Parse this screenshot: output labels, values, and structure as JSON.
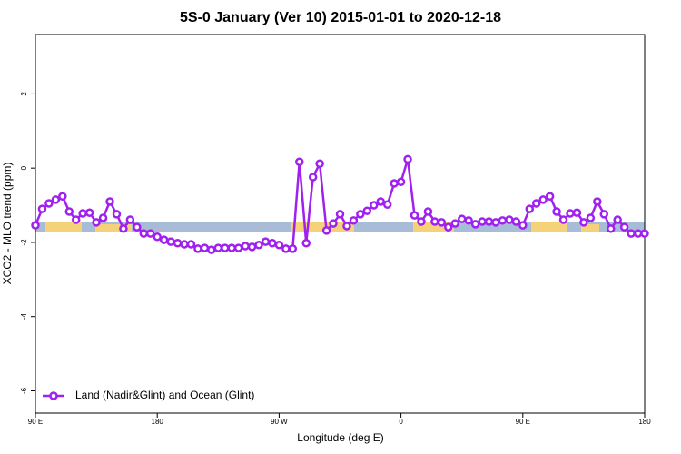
{
  "chart_data": {
    "type": "line",
    "title": "5S-0 January (Ver 10)   2015-01-01 to 2020-12-18",
    "x_label": "Longitude (deg E)",
    "y_label": "XCO2 - MLO trend (ppm)",
    "x": [
      90,
      95,
      100,
      105,
      110,
      115,
      120,
      125,
      130,
      135,
      140,
      145,
      150,
      155,
      160,
      165,
      170,
      175,
      180,
      185,
      190,
      195,
      200,
      205,
      210,
      215,
      220,
      225,
      230,
      235,
      240,
      245,
      250,
      255,
      260,
      265,
      270,
      275,
      280,
      285,
      290,
      295,
      300,
      305,
      310,
      315,
      320,
      325,
      330,
      335,
      340,
      345,
      350,
      355,
      360,
      365,
      370,
      375,
      380,
      385,
      390,
      395,
      400,
      405,
      410,
      415,
      420,
      425,
      430,
      435,
      440,
      445,
      450,
      455,
      460,
      465,
      470,
      475,
      480,
      485,
      490,
      495,
      500,
      505,
      510,
      515,
      520,
      525,
      530,
      535,
      540
    ],
    "series": [
      {
        "name": "Land (Nadir&Glint) and Ocean (Glint)",
        "color": "#a020f0",
        "values": [
          -1.54,
          -1.1,
          -0.95,
          -0.85,
          -0.76,
          -1.17,
          -1.39,
          -1.22,
          -1.2,
          -1.46,
          -1.34,
          -0.9,
          -1.24,
          -1.63,
          -1.39,
          -1.59,
          -1.76,
          -1.76,
          -1.85,
          -1.93,
          -1.98,
          -2.02,
          -2.05,
          -2.05,
          -2.17,
          -2.15,
          -2.2,
          -2.15,
          -2.15,
          -2.15,
          -2.15,
          -2.1,
          -2.12,
          -2.07,
          -1.98,
          -2.02,
          -2.07,
          -2.17,
          -2.17,
          0.17,
          -2.02,
          -0.24,
          0.12,
          -1.68,
          -1.49,
          -1.24,
          -1.56,
          -1.41,
          -1.24,
          -1.15,
          -1.0,
          -0.9,
          -0.98,
          -0.41,
          -0.37,
          0.24,
          -1.27,
          -1.44,
          -1.17,
          -1.44,
          -1.46,
          -1.59,
          -1.49,
          -1.37,
          -1.41,
          -1.51,
          -1.44,
          -1.44,
          -1.46,
          -1.41,
          -1.39,
          -1.44,
          -1.54,
          -1.1,
          -0.95,
          -0.85,
          -0.76,
          -1.17,
          -1.39,
          -1.22,
          -1.2,
          -1.46,
          -1.34,
          -0.9,
          -1.24,
          -1.63,
          -1.39,
          -1.59,
          -1.76,
          -1.76,
          -1.76
        ]
      }
    ],
    "xlim": [
      90,
      540
    ],
    "ylim": [
      -6.6,
      3.6
    ],
    "xticks": [
      {
        "value": 90,
        "label": "90 E"
      },
      {
        "value": 180,
        "label": "180"
      },
      {
        "value": 270,
        "label": "90 W"
      },
      {
        "value": 360,
        "label": "0"
      },
      {
        "value": 450,
        "label": "90 E"
      },
      {
        "value": 540,
        "label": "180"
      }
    ],
    "yticks": [
      -6,
      -4,
      -2,
      0,
      2
    ],
    "legend": "bottom-left"
  }
}
